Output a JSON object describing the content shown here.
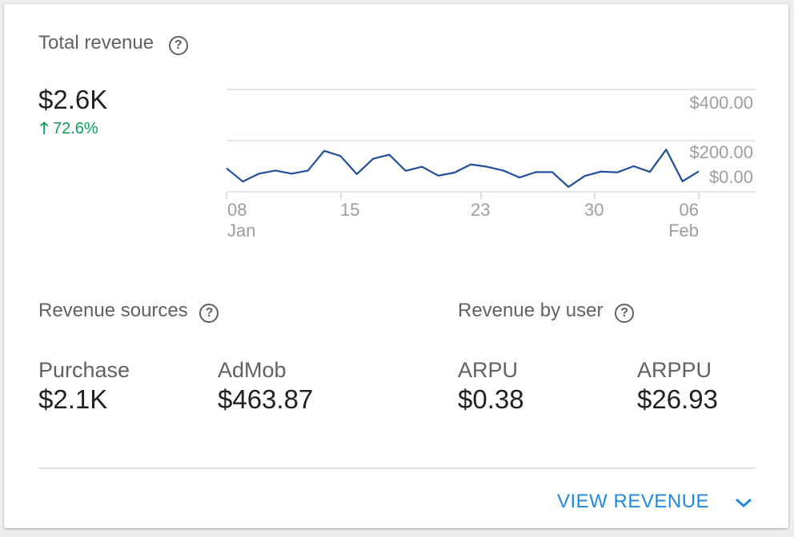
{
  "total_revenue": {
    "title": "Total revenue",
    "help_icon": "help-circle-icon",
    "value": "$2.6K",
    "change": "72.6%",
    "change_icon": "arrow-up-icon",
    "change_color": "#0f9d58"
  },
  "chart_data": {
    "type": "line",
    "x": [
      "Jan 08",
      "Jan 09",
      "Jan 10",
      "Jan 11",
      "Jan 12",
      "Jan 13",
      "Jan 14",
      "Jan 15",
      "Jan 16",
      "Jan 17",
      "Jan 18",
      "Jan 19",
      "Jan 20",
      "Jan 21",
      "Jan 22",
      "Jan 23",
      "Jan 24",
      "Jan 25",
      "Jan 26",
      "Jan 27",
      "Jan 28",
      "Jan 29",
      "Jan 30",
      "Jan 31",
      "Feb 01",
      "Feb 02",
      "Feb 03",
      "Feb 04",
      "Feb 05",
      "Feb 06"
    ],
    "series": [
      {
        "values": [
          92,
          40,
          71,
          83,
          71,
          83,
          160,
          140,
          69,
          129,
          145,
          82,
          98,
          63,
          75,
          107,
          98,
          83,
          56,
          77,
          77,
          19,
          62,
          79,
          76,
          100,
          78,
          165,
          41,
          80
        ],
        "color": "#1f4e9c"
      }
    ],
    "ylim": [
      0,
      400
    ],
    "y_tick_labels": [
      "$400.00",
      "$200.00",
      "$0.00"
    ],
    "x_ticks": [
      {
        "day": "08",
        "month": "Jan"
      },
      {
        "day": "15",
        "month": ""
      },
      {
        "day": "23",
        "month": ""
      },
      {
        "day": "30",
        "month": ""
      },
      {
        "day": "06",
        "month": "Feb"
      }
    ],
    "grid": true
  },
  "revenue_sources": {
    "title": "Revenue sources",
    "items": [
      {
        "label": "Purchase",
        "value": "$2.1K"
      },
      {
        "label": "AdMob",
        "value": "$463.87"
      }
    ]
  },
  "revenue_by_user": {
    "title": "Revenue by user",
    "items": [
      {
        "label": "ARPU",
        "value": "$0.38"
      },
      {
        "label": "ARPPU",
        "value": "$26.93"
      }
    ]
  },
  "footer": {
    "link": "VIEW REVENUE",
    "expand_icon": "chevron-down-icon",
    "accent": "#1e88e5"
  }
}
